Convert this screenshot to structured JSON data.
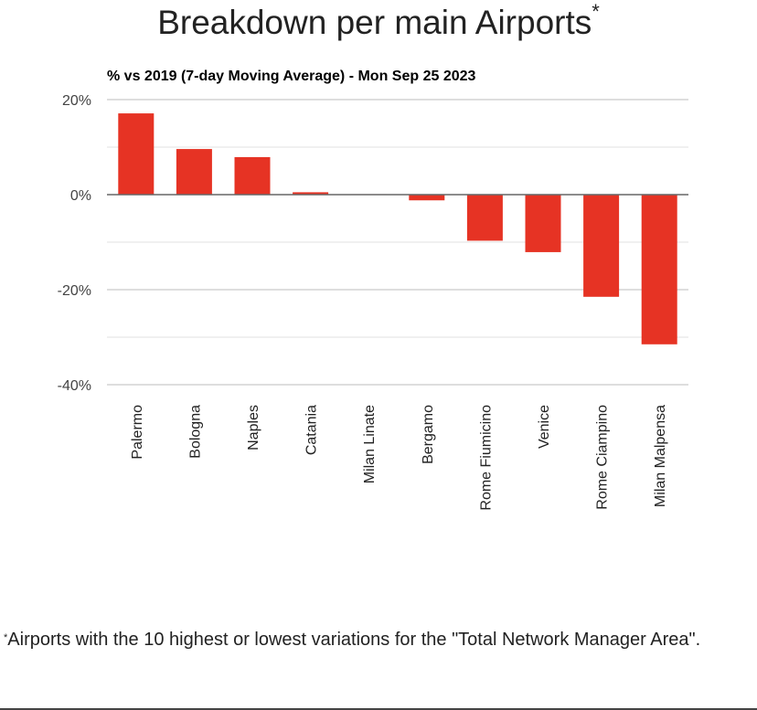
{
  "page": {
    "title": "Breakdown per main Airports",
    "title_marker": "*",
    "footnote_marker": "*",
    "footnote": "Airports with the 10 highest or lowest variations for the \"Total Network Manager Area\"."
  },
  "colors": {
    "bar": "#e63324",
    "grid": "#dddddd",
    "zero": "#666666"
  },
  "chart_data": {
    "type": "bar",
    "title": "% vs 2019 (7-day Moving Average) - Mon Sep 25 2023",
    "xlabel": "",
    "ylabel": "",
    "categories": [
      "Palermo",
      "Bologna",
      "Naples",
      "Catania",
      "Milan Linate",
      "Bergamo",
      "Rome Fiumicino",
      "Venice",
      "Rome Ciampino",
      "Milan Malpensa"
    ],
    "values": [
      17.1,
      9.6,
      7.9,
      0.5,
      0.1,
      -1.2,
      -9.7,
      -12.1,
      -21.5,
      -31.5
    ],
    "ylim": [
      -40,
      20
    ],
    "yticks": [
      20,
      0,
      -20,
      -40
    ],
    "ytick_labels": [
      "20%",
      "0%",
      "-20%",
      "-40%"
    ],
    "grid": true,
    "legend": "none"
  }
}
